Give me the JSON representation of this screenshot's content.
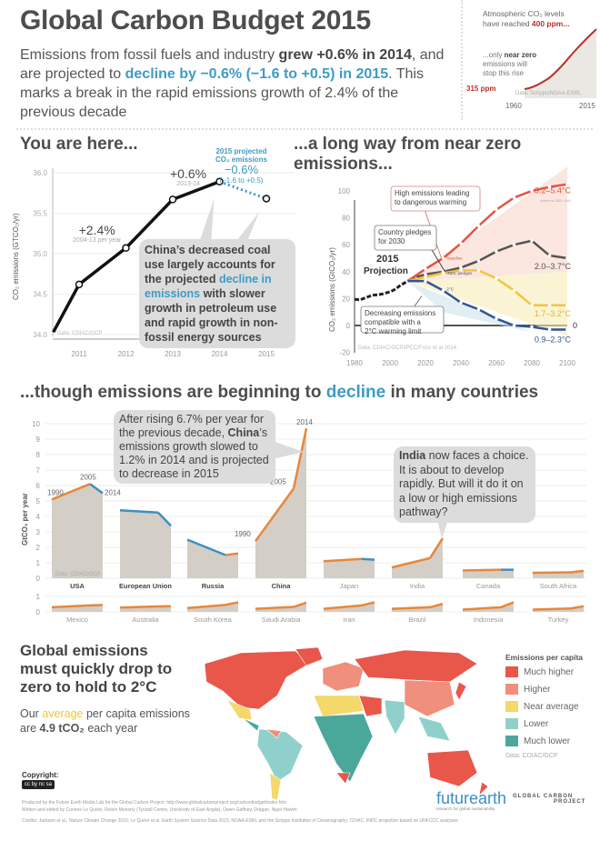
{
  "header": {
    "title": "Global Carbon Budget 2015",
    "subtitle": {
      "p1": "Emissions from fossil fuels and industry ",
      "p2": "grew +0.6% in 2014",
      "p3": ", and are projected to ",
      "p4": "decline by −0.6% (−1.6 to +0.5) in 2015",
      "p5": ". This marks a break in the rapid emissions growth of 2.4% of the previous decade"
    }
  },
  "inset": {
    "line1": "Atmospheric CO₂ levels",
    "line2a": "have reached ",
    "line2b": "400 ppm...",
    "note_a": "...only ",
    "note_b": "near zero",
    "note_c": "emissions will",
    "note_d": "stop this rise",
    "start_label": "315 ppm",
    "source": "Data: Scripps/NOAA-ESRL",
    "x_start": "1960",
    "x_end": "2015",
    "ppm_start": 315,
    "ppm_end": 400
  },
  "colors": {
    "orange": "#e8873a",
    "blue": "#3d8fc2",
    "red": "#e8533e",
    "yellow": "#f2c53d",
    "dark": "#555555",
    "bubble": "#dcdcdc"
  },
  "chart_data": [
    {
      "type": "line",
      "title": "You are here...",
      "ylabel": "CO₂ emissions (GTCO₂/yr)",
      "ylim": [
        34.0,
        36.0
      ],
      "yticks": [
        "34.0",
        "34.5",
        "35.0",
        "35.5",
        "36.0"
      ],
      "xticks": [
        "2011",
        "2012",
        "2013",
        "2014",
        "2015"
      ],
      "x": [
        2010.45,
        2011,
        2012,
        2013,
        2014,
        2015
      ],
      "y": [
        34.03,
        34.62,
        35.07,
        35.67,
        35.89,
        35.68
      ],
      "projected_from_index": 4,
      "annotations": {
        "growth_decade": "+2.4%",
        "growth_decade_sub": "2004-13 per year",
        "growth_2014": "+0.6%",
        "growth_2014_sub": "2013-14",
        "proj_title1": "2015 projected",
        "proj_title2": "CO₂ emissions",
        "proj_value": "−0.6%",
        "proj_range": "(−1.6 to +0.5)",
        "bubble1": "China’s decreased coal use largely accounts for the projected ",
        "bubble2": "decline in emissions",
        "bubble3": " with slower growth in petroleum use and rapid growth in non-fossil energy sources"
      },
      "source": "Data: CDIAC/GCP"
    },
    {
      "type": "line",
      "title": "...a long way from near zero emissions...",
      "ylabel": "CO₂ emissions (GtCO₂/yr)",
      "ylim": [
        -20,
        110
      ],
      "yticks": [
        "-20",
        "0",
        "20",
        "40",
        "60",
        "80",
        "100"
      ],
      "xticks": [
        "1980",
        "2000",
        "2020",
        "2040",
        "2060",
        "2080",
        "2100"
      ],
      "xlim": [
        1980,
        2100
      ],
      "series": [
        {
          "name": "Historical",
          "color": "#222222",
          "x": [
            1980,
            1983,
            1986,
            1990,
            1993,
            1996,
            2000,
            2003,
            2006,
            2010,
            2014
          ],
          "y": [
            19.5,
            19,
            20.5,
            22.5,
            22.8,
            23.5,
            25,
            27,
            30,
            33,
            35.7
          ]
        },
        {
          "name": "Baseline",
          "label": "3.2–5.4°C",
          "color": "#e8533e",
          "x": [
            2010,
            2020,
            2030,
            2040,
            2050,
            2060,
            2070,
            2080,
            2090,
            2100
          ],
          "y": [
            33,
            42,
            50,
            61,
            74,
            86,
            95,
            100,
            103,
            105
          ]
        },
        {
          "name": "INDC pledges",
          "label": "2.0–3.7°C",
          "color": "#555555",
          "x": [
            2015,
            2020,
            2030,
            2040,
            2050,
            2060,
            2070,
            2080,
            2090,
            2100
          ],
          "y": [
            36,
            38,
            40,
            43,
            48,
            55,
            60,
            63,
            52,
            50
          ]
        },
        {
          "name": "Middle",
          "label": "1.7–3.2°C",
          "color": "#f2c53d",
          "x": [
            2010,
            2020,
            2030,
            2040,
            2050,
            2060,
            2070,
            2080,
            2090,
            2100
          ],
          "y": [
            33,
            36,
            39,
            41,
            41,
            35,
            26,
            15,
            15,
            15
          ]
        },
        {
          "name": "2°C",
          "label": "0.9–2.3°C",
          "color": "#2f5597",
          "x": [
            2010,
            2020,
            2030,
            2040,
            2050,
            2060,
            2070,
            2080,
            2090,
            2100
          ],
          "y": [
            33,
            33,
            26,
            17,
            12,
            5,
            0,
            -1,
            -3,
            -3
          ]
        }
      ],
      "annotations": {
        "high": "High emissions leading to dangerous warming",
        "pledges": "Country pledges for 2030",
        "decreasing": "Decreasing emissions compatible with a 2°C warming limit",
        "projection": "2015 Projection",
        "zero": "0",
        "relative": "relative to 1850–1900",
        "tag_baseline": "Baseline",
        "tag_indc": "INDC pledges",
        "tag_2c": "2°C"
      },
      "source": "Data: CDIAC/GCP/IPCC/Fuss et al 2014"
    },
    {
      "type": "area",
      "title_a": "...though emissions are beginning to ",
      "title_b": "decline",
      "title_c": " in many countries",
      "ylabel": "GtCO₂ per year",
      "yticks": [
        "0",
        "1",
        "2",
        "3",
        "4",
        "5",
        "6",
        "7",
        "8",
        "9",
        "10"
      ],
      "yticks_row2": [
        "0",
        "1"
      ],
      "years": [
        "1990",
        "2005",
        "2014"
      ],
      "row1": [
        {
          "name": "USA",
          "values": [
            5.1,
            6.1,
            5.5
          ],
          "trend": [
            "up",
            "down"
          ]
        },
        {
          "name": "European Union",
          "values": [
            4.4,
            4.25,
            3.4
          ],
          "trend": [
            "down",
            "down"
          ]
        },
        {
          "name": "Russia",
          "values": [
            2.5,
            1.5,
            1.6
          ],
          "trend": [
            "down",
            "up"
          ]
        },
        {
          "name": "China",
          "values": [
            2.4,
            5.8,
            9.7
          ],
          "trend": [
            "up",
            "up"
          ]
        },
        {
          "name": "Japan",
          "values": [
            1.1,
            1.25,
            1.2
          ],
          "trend": [
            "up",
            "down"
          ]
        },
        {
          "name": "India",
          "values": [
            0.7,
            1.3,
            2.6
          ],
          "trend": [
            "up",
            "up"
          ]
        },
        {
          "name": "Canada",
          "values": [
            0.5,
            0.55,
            0.55
          ],
          "trend": [
            "up",
            "down"
          ]
        },
        {
          "name": "South Africa",
          "values": [
            0.35,
            0.38,
            0.48
          ],
          "trend": [
            "up",
            "up"
          ]
        }
      ],
      "row2": [
        {
          "name": "Mexico",
          "values": [
            0.3,
            0.42,
            0.45
          ],
          "trend": [
            "up",
            "up"
          ]
        },
        {
          "name": "Australia",
          "values": [
            0.28,
            0.35,
            0.37
          ],
          "trend": [
            "up",
            "up"
          ]
        },
        {
          "name": "South Korea",
          "values": [
            0.25,
            0.45,
            0.62
          ],
          "trend": [
            "up",
            "up"
          ]
        },
        {
          "name": "Saudi Arabia",
          "values": [
            0.2,
            0.32,
            0.6
          ],
          "trend": [
            "up",
            "up"
          ]
        },
        {
          "name": "Iran",
          "values": [
            0.2,
            0.42,
            0.62
          ],
          "trend": [
            "up",
            "up"
          ]
        },
        {
          "name": "Brazil",
          "values": [
            0.2,
            0.3,
            0.52
          ],
          "trend": [
            "up",
            "up"
          ]
        },
        {
          "name": "Indonesia",
          "values": [
            0.15,
            0.3,
            0.62
          ],
          "trend": [
            "up",
            "up"
          ]
        },
        {
          "name": "Turkey",
          "values": [
            0.15,
            0.22,
            0.37
          ],
          "trend": [
            "up",
            "up"
          ]
        }
      ],
      "china_bubble_a": "After rising 6.7% per year for the previous decade, ",
      "china_bubble_b": "China",
      "china_bubble_c": "’s emissions growth slowed to 1.2% in 2014 and is projected to decrease in 2015",
      "india_bubble_a": "India",
      "india_bubble_b": " now faces a choice. It is about to develop rapidly. But will it do it on a low or high emissions pathway?",
      "source": "Data: CDIAC/GCP"
    }
  ],
  "map": {
    "heading": "Global emissions must quickly drop to zero to hold to 2°C",
    "avg_a": "Our ",
    "avg_b": "average",
    "avg_c": " per capita emissions are ",
    "avg_d": "4.9 tCO₂",
    "avg_e": " each year",
    "legend_title": "Emissions per capita",
    "legend": [
      {
        "label": "Much higher",
        "color": "#e8574a"
      },
      {
        "label": "Higher",
        "color": "#f08f7c"
      },
      {
        "label": "Near average",
        "color": "#f4d86a"
      },
      {
        "label": "Lower",
        "color": "#8fd0cc"
      },
      {
        "label": "Much lower",
        "color": "#4aa89a"
      }
    ],
    "source": "Data: CDIAC/GCP"
  },
  "footer": {
    "copyright": "Copyright:",
    "cc": "cc by nc sa",
    "produced": "Produced by the Future Earth Media Lab for the Global Carbon Project: http://www.globalcarbonproject.org/carbonbudget/index.htm",
    "written": "Written and edited by Corinne Le Quéré, Róisín Moriarty (Tyndall Centre, University of East Anglia), Owen Gaffney, Drágan, Nigel Hawtin",
    "credits": "Credits: Jackson et al., Nature Climate Change 2015; Le Quéré et al. Earth System Science Data 2015; NOAA-ESRL and the Scripps Institution of Oceanography; CDIAC. INDC projection based on UNFCCC analyses",
    "futurearth": "futurearth",
    "futurearth_sub": "research for global sustainability",
    "gcp_a": "GLOBAL",
    "gcp_b": "CARBON",
    "gcp_c": "PROJECT"
  }
}
